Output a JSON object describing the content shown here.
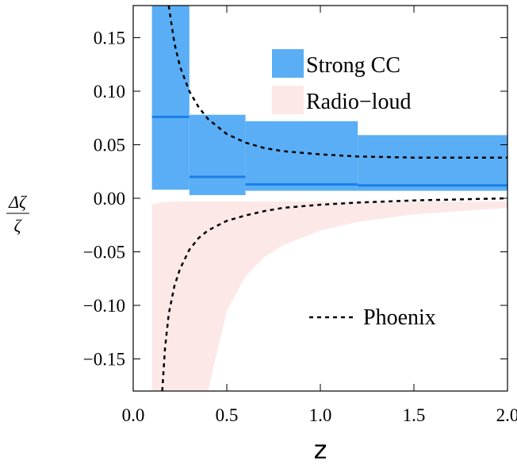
{
  "chart_data": {
    "type": "line",
    "xlabel": "z",
    "ylabel_numerator": "Δζ",
    "ylabel_denominator": "ζ",
    "xlim": [
      0.0,
      2.0
    ],
    "ylim": [
      -0.18,
      0.18
    ],
    "xticks": [
      0.0,
      0.5,
      1.0,
      1.5,
      2.0
    ],
    "xtick_labels": [
      "0.0",
      "0.5",
      "1.0",
      "1.5",
      "2.0"
    ],
    "yticks": [
      0.15,
      0.1,
      0.05,
      0.0,
      -0.05,
      -0.1,
      -0.15
    ],
    "ytick_labels": [
      "0.15",
      "0.10",
      "0.05",
      "0.00",
      "−0.05",
      "−0.10",
      "−0.15"
    ],
    "legend": [
      {
        "label": "Strong CC",
        "color": "#5aaef5",
        "style": "patch"
      },
      {
        "label": "Radio−loud",
        "color": "#fde8e8",
        "style": "patch"
      },
      {
        "label": "Phoenix",
        "color": "#000000",
        "style": "dashed"
      }
    ],
    "strong_cc_bins": [
      {
        "z_min": 0.1,
        "z_max": 0.3,
        "lower": 0.008,
        "upper": 0.18,
        "center": 0.076
      },
      {
        "z_min": 0.3,
        "z_max": 0.6,
        "lower": 0.003,
        "upper": 0.078,
        "center": 0.02
      },
      {
        "z_min": 0.6,
        "z_max": 1.2,
        "lower": 0.007,
        "upper": 0.072,
        "center": 0.013
      },
      {
        "z_min": 1.2,
        "z_max": 2.0,
        "lower": 0.007,
        "upper": 0.059,
        "center": 0.012
      }
    ],
    "radio_loud_band": {
      "z": [
        0.1,
        0.15,
        0.2,
        0.25,
        0.3,
        0.35,
        0.4,
        0.5,
        0.6,
        0.7,
        0.8,
        1.0,
        1.2,
        1.5,
        2.0
      ],
      "upper": [
        -0.006,
        -0.004,
        -0.003,
        -0.003,
        -0.003,
        -0.003,
        -0.003,
        -0.003,
        -0.003,
        -0.003,
        -0.003,
        -0.003,
        -0.003,
        -0.003,
        -0.003
      ],
      "lower": [
        -0.18,
        -0.18,
        -0.18,
        -0.18,
        -0.18,
        -0.18,
        -0.18,
        -0.105,
        -0.073,
        -0.055,
        -0.044,
        -0.03,
        -0.022,
        -0.015,
        -0.009
      ]
    },
    "phoenix_upper": {
      "z": [
        0.19,
        0.22,
        0.25,
        0.3,
        0.35,
        0.4,
        0.5,
        0.6,
        0.7,
        0.8,
        1.0,
        1.2,
        1.5,
        2.0
      ],
      "y": [
        0.18,
        0.145,
        0.123,
        0.1,
        0.085,
        0.074,
        0.06,
        0.052,
        0.047,
        0.044,
        0.041,
        0.039,
        0.038,
        0.038
      ]
    },
    "phoenix_lower": {
      "z": [
        0.155,
        0.17,
        0.19,
        0.22,
        0.25,
        0.3,
        0.35,
        0.4,
        0.5,
        0.6,
        0.7,
        0.8,
        1.0,
        1.2,
        1.5,
        2.0
      ],
      "y": [
        -0.18,
        -0.14,
        -0.108,
        -0.082,
        -0.066,
        -0.048,
        -0.037,
        -0.03,
        -0.021,
        -0.016,
        -0.012,
        -0.009,
        -0.006,
        -0.004,
        -0.002,
        0.0
      ]
    }
  }
}
